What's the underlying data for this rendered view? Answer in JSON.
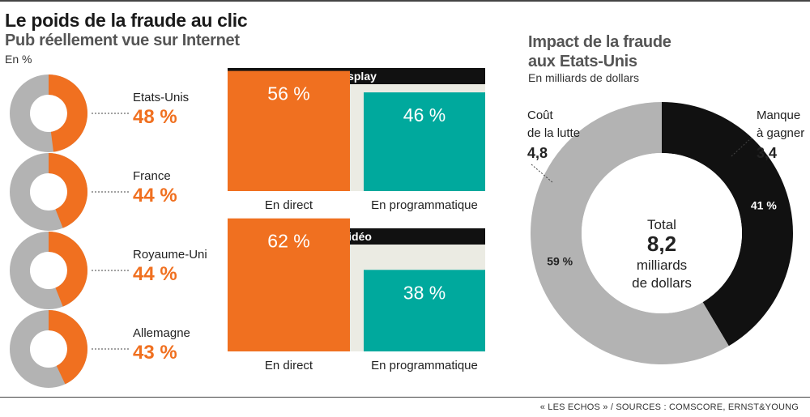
{
  "header": {
    "title": "Le poids de la fraude au clic",
    "subtitle": "Pub réellement vue sur Internet",
    "unit": "En %"
  },
  "right_header": {
    "title_line1": "Impact de la fraude",
    "title_line2": "aux Etats-Unis",
    "unit": "En milliards de dollars"
  },
  "source": "« LES ECHOS » / SOURCES : COMSCORE, ERNST&YOUNG",
  "colors": {
    "orange": "#f07020",
    "teal": "#00a99d",
    "gray": "#b3b3b3",
    "black": "#111111",
    "panel": "#ebebe3"
  },
  "chart_data": [
    {
      "type": "pie",
      "countries": [
        {
          "name": "Etats-Unis",
          "value": 48,
          "label": "48 %"
        },
        {
          "name": "France",
          "value": 44,
          "label": "44 %"
        },
        {
          "name": "Royaume-Uni",
          "value": 44,
          "label": "44 %"
        },
        {
          "name": "Allemagne",
          "value": 43,
          "label": "43 %"
        }
      ]
    },
    {
      "type": "bar",
      "title": "Display",
      "categories": [
        "En direct",
        "En programmatique"
      ],
      "values": [
        56,
        46
      ],
      "labels": [
        "56 %",
        "46 %"
      ]
    },
    {
      "type": "bar",
      "title": "Vidéo",
      "categories": [
        "En direct",
        "En programmatique"
      ],
      "values": [
        62,
        38
      ],
      "labels": [
        "62 %",
        "38 %"
      ]
    },
    {
      "type": "pie",
      "center": {
        "line1": "Total",
        "value": "8,2",
        "line3": "milliards",
        "line4": "de dollars"
      },
      "slices": [
        {
          "line1": "Manque",
          "line2": "à gagner",
          "value": 3.4,
          "value_label": "3,4",
          "pct": "41 %"
        },
        {
          "line1": "Coût",
          "line2": "de la lutte",
          "value": 4.8,
          "value_label": "4,8",
          "pct": "59 %"
        }
      ]
    }
  ]
}
